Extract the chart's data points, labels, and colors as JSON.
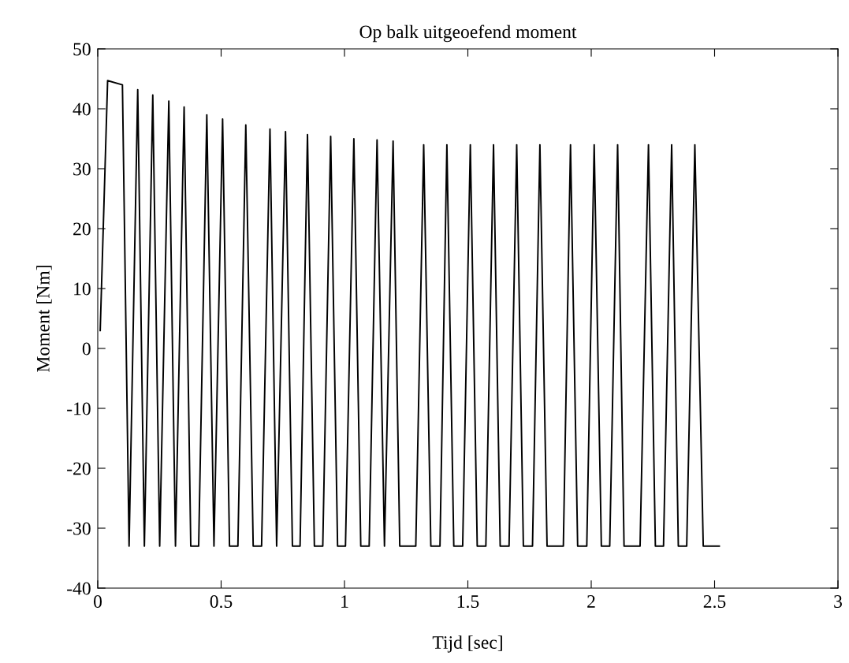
{
  "chart_data": {
    "type": "line",
    "title": "Op balk uitgeoefend moment",
    "xlabel": "Tijd [sec]",
    "ylabel": "Moment [Nm]",
    "x": [
      0.01,
      0.04,
      0.1,
      0.127,
      0.162,
      0.189,
      0.223,
      0.251,
      0.288,
      0.315,
      0.35,
      0.377,
      0.409,
      0.442,
      0.471,
      0.506,
      0.534,
      0.568,
      0.6,
      0.63,
      0.664,
      0.698,
      0.725,
      0.761,
      0.789,
      0.82,
      0.85,
      0.878,
      0.912,
      0.944,
      0.972,
      1.004,
      1.038,
      1.066,
      1.1,
      1.132,
      1.162,
      1.197,
      1.224,
      1.289,
      1.321,
      1.35,
      1.387,
      1.415,
      1.443,
      1.479,
      1.51,
      1.538,
      1.573,
      1.604,
      1.631,
      1.667,
      1.698,
      1.725,
      1.762,
      1.792,
      1.821,
      1.887,
      1.916,
      1.945,
      1.982,
      2.012,
      2.041,
      2.075,
      2.107,
      2.133,
      2.198,
      2.232,
      2.26,
      2.293,
      2.326,
      2.353,
      2.387,
      2.42,
      2.454,
      2.519
    ],
    "series": [
      {
        "color": "#000000",
        "values": [
          3,
          44.7,
          44.0,
          -33,
          43.2,
          -33,
          42.3,
          -33,
          41.3,
          -33,
          40.3,
          -33,
          -33,
          39.0,
          -33,
          38.3,
          -33,
          -33,
          37.3,
          -33,
          -33,
          36.6,
          -33,
          36.2,
          -33,
          -33,
          35.7,
          -33,
          -33,
          35.4,
          -33,
          -33,
          35.0,
          -33,
          -33,
          34.8,
          -33,
          34.6,
          -33,
          -33,
          34.0,
          -33,
          -33,
          34.0,
          -33,
          -33,
          34.0,
          -33,
          -33,
          34.0,
          -33,
          -33,
          34.0,
          -33,
          -33,
          34.0,
          -33,
          -33,
          34.0,
          -33,
          -33,
          34.0,
          -33,
          -33,
          34.0,
          -33,
          -33,
          34.0,
          -33,
          -33,
          34.0,
          -33,
          -33,
          34.0,
          -33,
          -33
        ]
      }
    ],
    "xlim": [
      0,
      3
    ],
    "xticks": [
      0,
      0.5,
      1,
      1.5,
      2,
      2.5,
      3
    ],
    "ylim": [
      -40,
      50
    ],
    "yticks": [
      -40,
      -30,
      -20,
      -10,
      0,
      10,
      20,
      30,
      40,
      50
    ],
    "grid": false,
    "legend": false,
    "marker": "none",
    "line_style": "solid"
  }
}
